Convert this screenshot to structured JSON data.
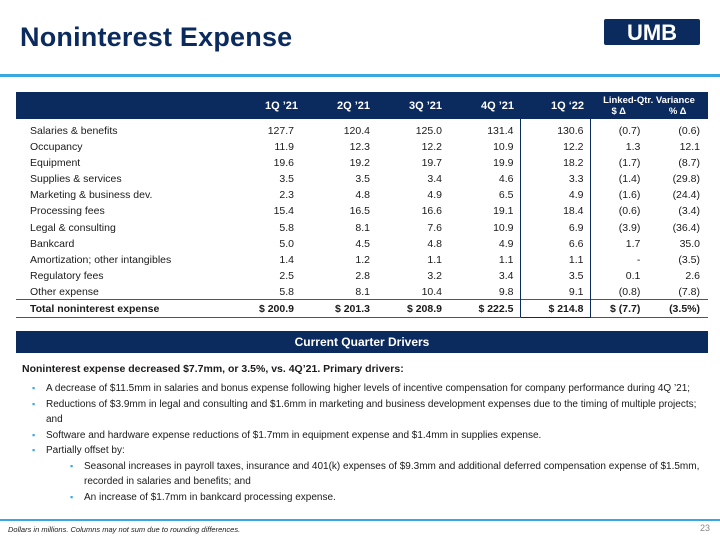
{
  "title": "Noninterest Expense",
  "logo_text": "UMB",
  "colors": {
    "navy": "#0b2a5e",
    "accent": "#3aa7e0"
  },
  "table": {
    "headers": [
      "1Q ’21",
      "2Q ’21",
      "3Q ’21",
      "4Q ’21",
      "1Q ‘22"
    ],
    "variance_title": "Linked-Qtr. Variance",
    "variance_sub1": "$ Δ",
    "variance_sub2": "% Δ",
    "rows": [
      {
        "label": "Salaries & benefits",
        "v": [
          "127.7",
          "120.4",
          "125.0",
          "131.4",
          "130.6"
        ],
        "d": "(0.7)",
        "p": "(0.6)"
      },
      {
        "label": "Occupancy",
        "v": [
          "11.9",
          "12.3",
          "12.2",
          "10.9",
          "12.2"
        ],
        "d": "1.3",
        "p": "12.1"
      },
      {
        "label": "Equipment",
        "v": [
          "19.6",
          "19.2",
          "19.7",
          "19.9",
          "18.2"
        ],
        "d": "(1.7)",
        "p": "(8.7)"
      },
      {
        "label": "Supplies & services",
        "v": [
          "3.5",
          "3.5",
          "3.4",
          "4.6",
          "3.3"
        ],
        "d": "(1.4)",
        "p": "(29.8)"
      },
      {
        "label": "Marketing & business dev.",
        "v": [
          "2.3",
          "4.8",
          "4.9",
          "6.5",
          "4.9"
        ],
        "d": "(1.6)",
        "p": "(24.4)"
      },
      {
        "label": "Processing fees",
        "v": [
          "15.4",
          "16.5",
          "16.6",
          "19.1",
          "18.4"
        ],
        "d": "(0.6)",
        "p": "(3.4)"
      },
      {
        "label": "Legal & consulting",
        "v": [
          "5.8",
          "8.1",
          "7.6",
          "10.9",
          "6.9"
        ],
        "d": "(3.9)",
        "p": "(36.4)"
      },
      {
        "label": "Bankcard",
        "v": [
          "5.0",
          "4.5",
          "4.8",
          "4.9",
          "6.6"
        ],
        "d": "1.7",
        "p": "35.0"
      },
      {
        "label": "Amortization; other intangibles",
        "v": [
          "1.4",
          "1.2",
          "1.1",
          "1.1",
          "1.1"
        ],
        "d": "-",
        "p": "(3.5)"
      },
      {
        "label": "Regulatory fees",
        "v": [
          "2.5",
          "2.8",
          "3.2",
          "3.4",
          "3.5"
        ],
        "d": "0.1",
        "p": "2.6"
      },
      {
        "label": "Other expense",
        "v": [
          "5.8",
          "8.1",
          "10.4",
          "9.8",
          "9.1"
        ],
        "d": "(0.8)",
        "p": "(7.8)"
      }
    ],
    "total": {
      "label": "Total noninterest expense",
      "v": [
        "$ 200.9",
        "$ 201.3",
        "$ 208.9",
        "$ 222.5",
        "$ 214.8"
      ],
      "d": "$ (7.7)",
      "p": "(3.5%)"
    }
  },
  "drivers": {
    "heading": "Current Quarter Drivers",
    "lead": "Noninterest expense decreased $7.7mm, or 3.5%, vs. 4Q’21. Primary drivers:",
    "bullets": [
      "A decrease of $11.5mm in salaries and bonus expense following higher levels of incentive compensation for company performance during 4Q ’21;",
      "Reductions of $3.9mm in legal and consulting and $1.6mm in marketing and business development expenses due to the timing of multiple projects; and",
      "Software and hardware expense reductions of $1.7mm in equipment expense and $1.4mm in supplies expense.",
      "Partially offset by:"
    ],
    "sub_bullets": [
      "Seasonal increases in payroll taxes, insurance and 401(k) expenses of $9.3mm and additional deferred compensation expense of $1.5mm, recorded in salaries and benefits; and",
      "An increase of $1.7mm in bankcard processing expense."
    ]
  },
  "footnote": "Dollars in millions. Columns may not sum due to rounding differences.",
  "page_number": "23"
}
